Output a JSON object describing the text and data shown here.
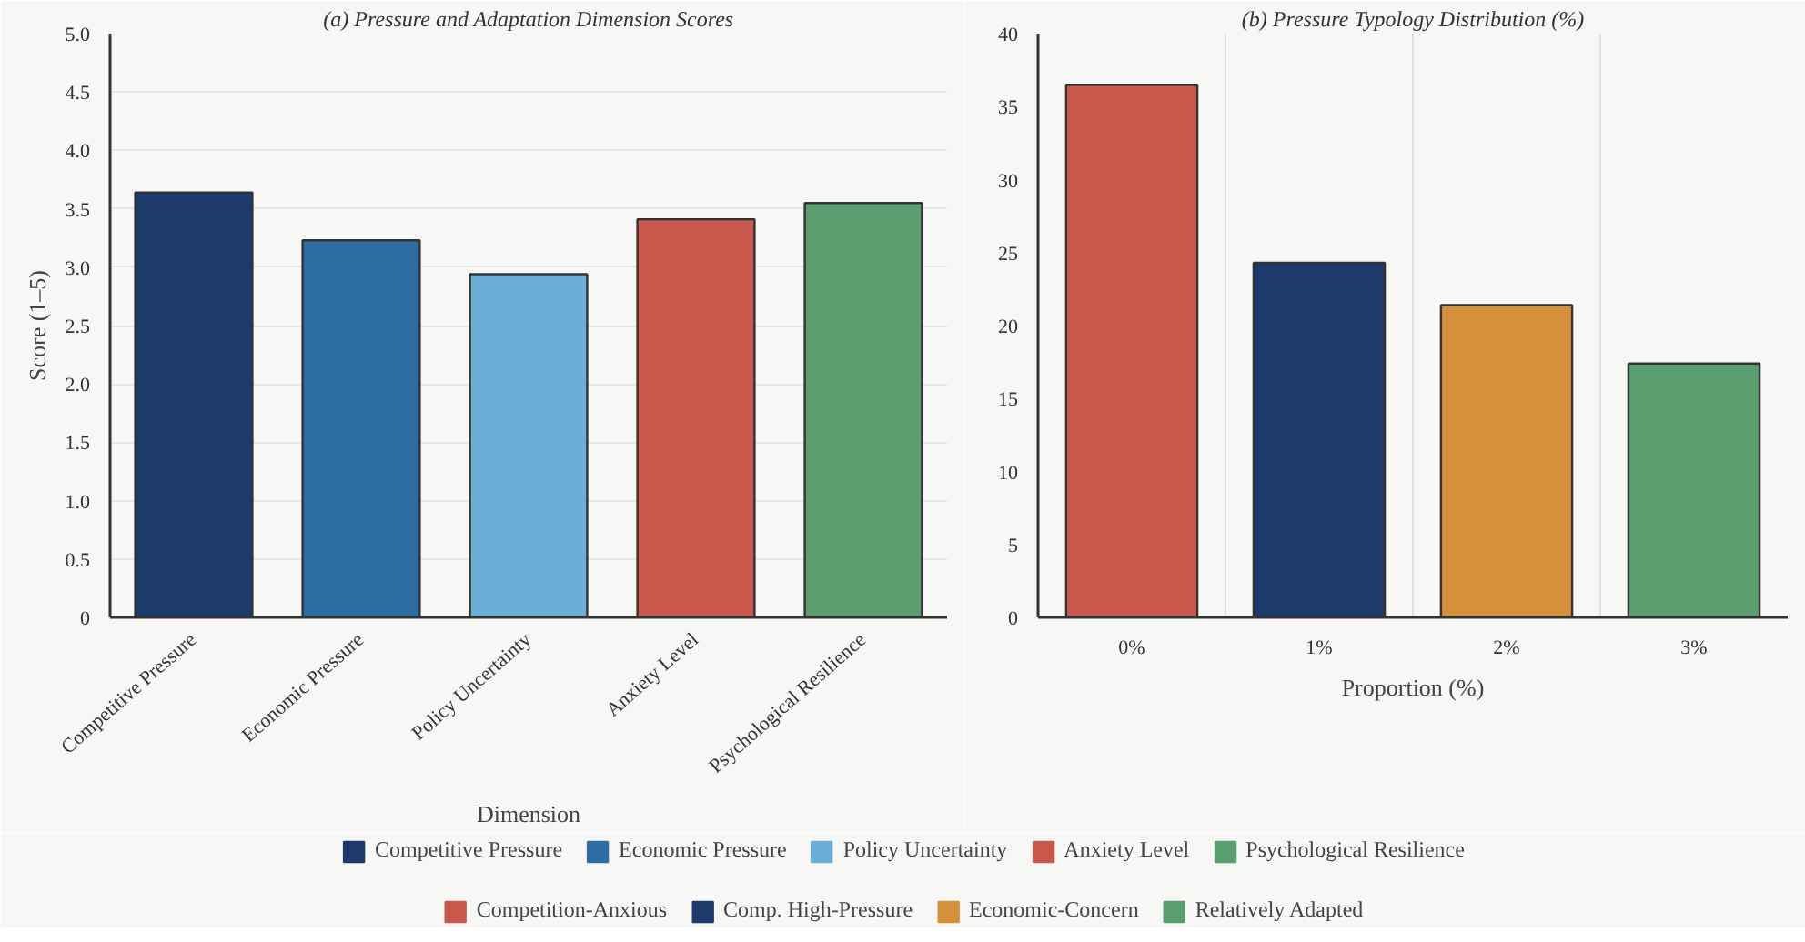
{
  "chart_data": [
    {
      "type": "bar",
      "title": "(a) Pressure and Adaptation Dimension Scores",
      "xlabel": "Dimension",
      "ylabel": "Score (1–5)",
      "categories": [
        "Competitive Pressure",
        "Economic Pressure",
        "Policy Uncertainty",
        "Anxiety Level",
        "Psychological Resilience"
      ],
      "series": [
        {
          "name": "Competitive Pressure",
          "color": "#1c3a6b",
          "values": [
            3.64,
            null,
            null,
            null,
            null
          ]
        },
        {
          "name": "Economic Pressure",
          "color": "#2e6da4",
          "values": [
            null,
            3.23,
            null,
            null,
            null
          ]
        },
        {
          "name": "Policy Uncertainty",
          "color": "#6baed6",
          "values": [
            null,
            null,
            2.94,
            null,
            null
          ]
        },
        {
          "name": "Anxiety Level",
          "color": "#c8584c",
          "values": [
            null,
            null,
            null,
            3.41,
            null
          ]
        },
        {
          "name": "Psychological Resilience",
          "color": "#5a9e6f",
          "values": [
            null,
            null,
            null,
            null,
            3.55
          ]
        }
      ],
      "ylim": [
        0,
        5
      ],
      "yticks": [
        0,
        0.5,
        {
          "value": 1,
          "label": "1.0"
        },
        1.5,
        {
          "value": 2,
          "label": "2.0"
        },
        2.5,
        {
          "value": 3,
          "label": "3.0"
        },
        3.5,
        {
          "value": 4,
          "label": "4.0"
        },
        4.5,
        {
          "value": 5,
          "label": "5.0"
        }
      ],
      "grid": "y",
      "legend": "bottom"
    },
    {
      "type": "bar",
      "title": "(b) Pressure Typology Distribution (%)",
      "xlabel": "Proportion (%)",
      "categories": [
        "0%",
        "1%",
        "2%",
        "3%"
      ],
      "series": [
        {
          "name": "Competition-Anxious",
          "color": "#c8584c",
          "values": [
            36.5,
            null,
            null,
            null
          ]
        },
        {
          "name": "Comp. High-Pressure",
          "color": "#1c3a6b",
          "values": [
            null,
            24.3,
            null,
            null
          ]
        },
        {
          "name": "Economic-Concern",
          "color": "#d4903a",
          "values": [
            null,
            null,
            21.4,
            null
          ]
        },
        {
          "name": "Relatively Adapted",
          "color": "#5a9e6f",
          "values": [
            null,
            null,
            null,
            17.4
          ]
        }
      ],
      "ylim": [
        0,
        40
      ],
      "yticks": [
        0,
        5,
        10,
        15,
        20,
        25,
        30,
        35,
        40
      ],
      "grid": "x",
      "legend": "bottom"
    }
  ]
}
